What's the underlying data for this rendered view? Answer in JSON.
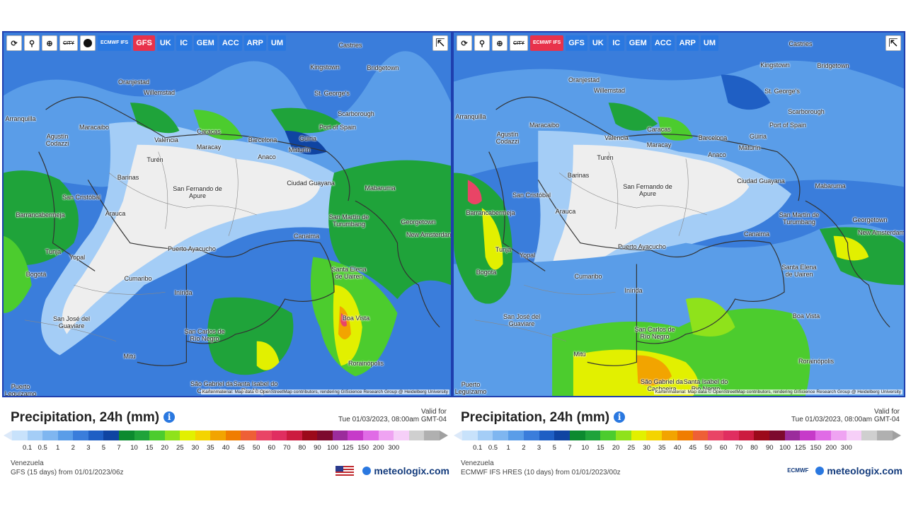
{
  "palette": [
    "#c8e2fb",
    "#a4cdf6",
    "#7fb6f0",
    "#5a9de8",
    "#3a7ddb",
    "#1f5fc4",
    "#0f44a2",
    "#0c8a2f",
    "#1fa33a",
    "#4ccc2e",
    "#8fe21b",
    "#e2f000",
    "#f4d400",
    "#f2a400",
    "#f07d00",
    "#ee5f36",
    "#e94466",
    "#e02e60",
    "#cc1b3f",
    "#9c0a1a",
    "#7d0a2e",
    "#9b2c9c",
    "#c63ac9",
    "#e06be6",
    "#efa3f2",
    "#f6cff8",
    "#cfcfcf",
    "#b0b0b0"
  ],
  "left": {
    "toolbar": {
      "buttons": [
        "ECMWF IFS",
        "GFS",
        "UK",
        "IC",
        "GEM",
        "ACC",
        "ARP",
        "UM"
      ],
      "active": "GFS",
      "city_label": "CITY"
    },
    "title": "Precipitation, 24h (mm)",
    "valid_for": "Valid for",
    "valid_date": "Tue 01/03/2023, 08:00am GMT-04",
    "region": "Venezuela",
    "model_line": "GFS (15 days) from 01/01/2023/06z",
    "brand": "meteologix.com",
    "attribution": "Kartenmaterial: Map data © OpenStreetMap contributors, rendering GIScience Research Group @ Heidelberg University"
  },
  "right": {
    "toolbar": {
      "buttons": [
        "ECMWF IFS",
        "GFS",
        "UK",
        "IC",
        "GEM",
        "ACC",
        "ARP",
        "UM"
      ],
      "active": "ECMWF IFS",
      "city_label": "CITY"
    },
    "title": "Precipitation, 24h (mm)",
    "valid_for": "Valid for",
    "valid_date": "Tue 01/03/2023, 08:00am GMT-04",
    "region": "Venezuela",
    "model_line": "ECMWF IFS HRES (10 days) from 01/01/2023/00z",
    "brand": "meteologix.com",
    "ecmwf_logo": "ECMWF",
    "attribution": "Kartenmaterial: Map data © OpenStreetMap contributors, rendering GIScience Research Group @ Heidelberg University"
  },
  "scale_labels": [
    "0.1",
    "0.5",
    "1",
    "2",
    "3",
    "5",
    "7",
    "10",
    "15",
    "20",
    "25",
    "30",
    "35",
    "40",
    "45",
    "50",
    "60",
    "70",
    "80",
    "90",
    "100",
    "125",
    "150",
    "200",
    "300"
  ],
  "cities": [
    "Castries",
    "Kingstown",
    "Bridgetown",
    "Oranjestad",
    "Willemstad",
    "St. George's",
    "Scarborough",
    "Port of Spain",
    "Maracaibo",
    "Caracas",
    "Valencia",
    "Maracay",
    "Barcelona",
    "Güiria",
    "Maturín",
    "Anaco",
    "Agustín Codazzi",
    "Turén",
    "Barinas",
    "San Fernando de Apure",
    "Ciudad Guayana",
    "Mabaruma",
    "San Cristóbal",
    "Barrancabermeja",
    "Arauca",
    "San Martín de Turumbang",
    "Georgetown",
    "New Amsterdam",
    "Canaima",
    "Puerto Ayacucho",
    "Tunja",
    "Yopal",
    "Santa Elena de Uairen",
    "Bogotá",
    "Cumaribo",
    "Inírida",
    "Boa Vista",
    "San José del Guaviare",
    "San Carlos de Río Negro",
    "Rorainópolis",
    "Mitú",
    "São Gabriel da Cachoeira",
    "Santa Isabel do Rio Negro",
    "Puerto Leguízamo",
    "Arranquilla"
  ]
}
